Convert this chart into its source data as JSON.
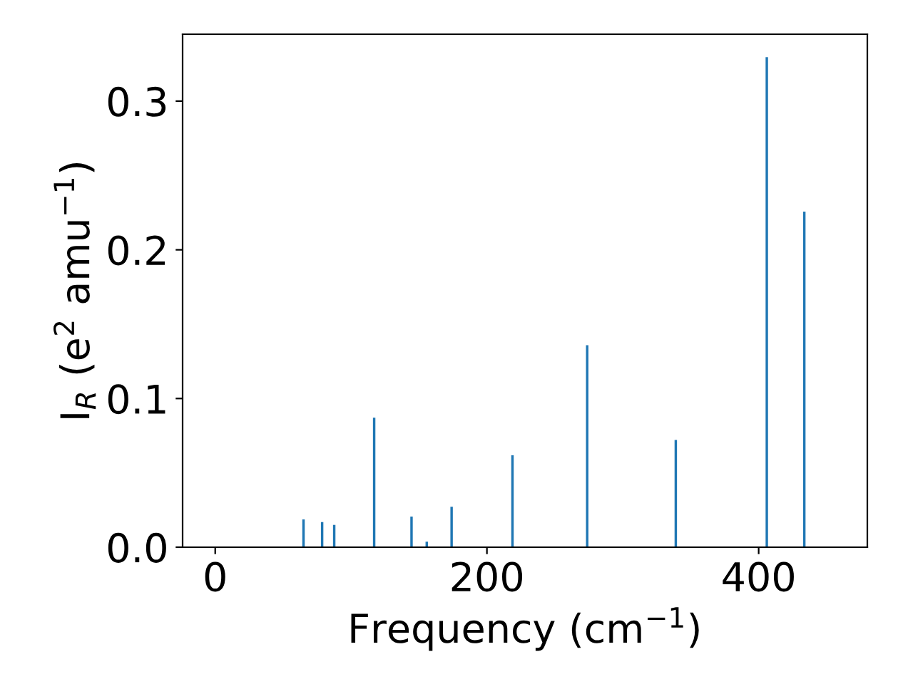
{
  "chart_data": {
    "type": "bar",
    "xlabel": "Frequency (cm$^{−1}$)",
    "ylabel": "I$_{R}$ (e$^{2}$ amu$^{−1}$)",
    "x": [
      65,
      78.7,
      87.6,
      117,
      144.5,
      155.7,
      174,
      218.8,
      273.8,
      339,
      406,
      433.6
    ],
    "series": [
      {
        "color": "#1f77b4",
        "values": [
          0.0187,
          0.0169,
          0.015,
          0.0871,
          0.0206,
          0.0037,
          0.0272,
          0.0618,
          0.1358,
          0.0721,
          0.3296,
          0.2257
        ]
      }
    ],
    "xlim": [
      -24,
      480
    ],
    "xticks": [
      0,
      200,
      400
    ],
    "ylim": [
      0,
      0.345
    ],
    "yticks": [
      {
        "value": 0,
        "label": "0.0"
      },
      0.1,
      0.2,
      0.3
    ],
    "grid": false
  }
}
